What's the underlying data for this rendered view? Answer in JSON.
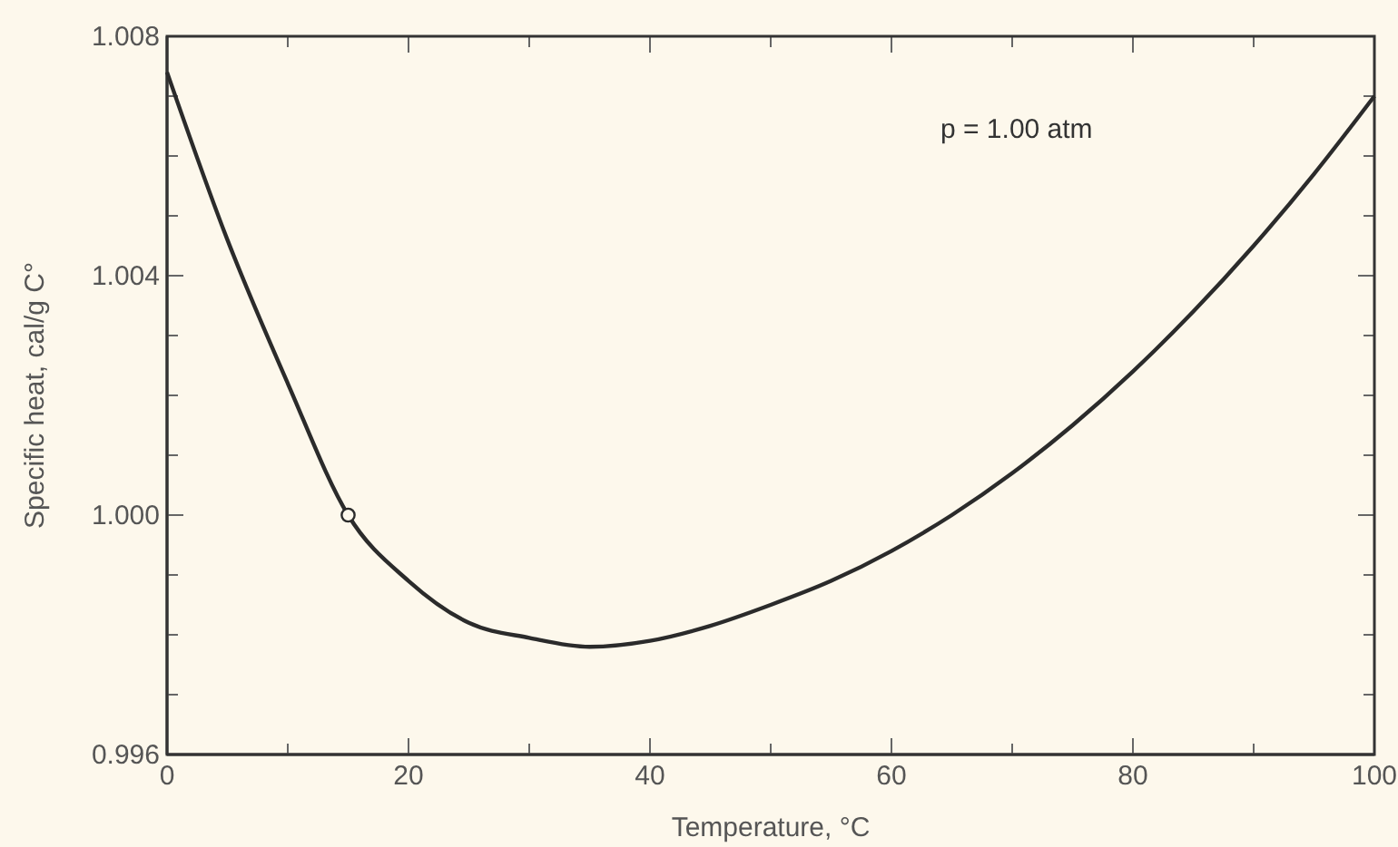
{
  "chart_data": {
    "type": "line",
    "xlabel": "Temperature, °C",
    "ylabel": "Specific heat, cal/g C°",
    "xlim": [
      0,
      100
    ],
    "ylim": [
      0.996,
      1.008
    ],
    "xticks": [
      0,
      {
        "value": 10,
        "label": null
      },
      20,
      {
        "value": 30,
        "label": null
      },
      40,
      {
        "value": 50,
        "label": null
      },
      60,
      {
        "value": 70,
        "label": null
      },
      80,
      {
        "value": 90,
        "label": null
      },
      100
    ],
    "yticks": [
      0.996,
      {
        "value": 0.997,
        "label": null
      },
      {
        "value": 0.998,
        "label": null
      },
      {
        "value": 0.999,
        "label": null
      },
      {
        "value": 1,
        "label": "1.000"
      },
      {
        "value": 1.001,
        "label": null
      },
      {
        "value": 1.002,
        "label": null
      },
      {
        "value": 1.003,
        "label": null
      },
      1.004,
      {
        "value": 1.005,
        "label": null
      },
      {
        "value": 1.006,
        "label": null
      },
      {
        "value": 1.007,
        "label": null
      },
      1.008
    ],
    "grid": false,
    "annotations": [
      "p = 1.00 atm"
    ],
    "series": [
      {
        "color": "#2b2b2b",
        "marker": "none",
        "x": [
          0,
          5,
          10,
          15,
          20,
          25,
          30,
          35,
          40,
          45,
          50,
          55,
          60,
          65,
          70,
          75,
          80,
          85,
          90,
          95,
          100
        ],
        "values": [
          1.0074,
          1.0046,
          1.0022,
          1.0,
          0.9989,
          0.9982,
          0.99795,
          0.9978,
          0.9979,
          0.99815,
          0.9985,
          0.9989,
          0.9994,
          1.0,
          1.0007,
          1.0015,
          1.0024,
          1.0034,
          1.0045,
          1.0057,
          1.007
        ]
      },
      {
        "type": "scatter",
        "color": "#2b2b2b",
        "marker": "circle",
        "x": [
          15
        ],
        "values": [
          1.0
        ]
      }
    ]
  }
}
